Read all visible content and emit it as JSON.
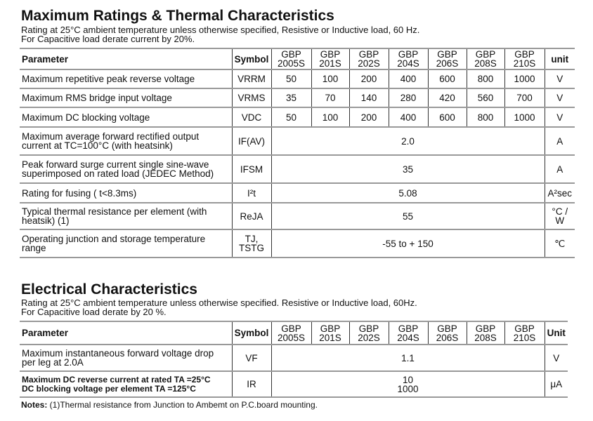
{
  "t1": {
    "title": "Maximum Ratings & Thermal Characteristics",
    "sub1": "Rating at 25°C ambient temperature unless otherwise specified, Resistive or Inductive load, 60 Hz.",
    "sub2": "For Capacitive load derate current by 20%.",
    "headers": {
      "param": "Parameter",
      "symbol": "Symbol",
      "unit": "unit",
      "models": [
        "GBP 2005S",
        "GBP 201S",
        "GBP 202S",
        "GBP 204S",
        "GBP 206S",
        "GBP 208S",
        "GBP 210S"
      ]
    },
    "rows": [
      {
        "param": "Maximum repetitive peak reverse voltage",
        "symbol": "VRRM",
        "values": [
          "50",
          "100",
          "200",
          "400",
          "600",
          "800",
          "1000"
        ],
        "unit": "V"
      },
      {
        "param": "Maximum RMS bridge input voltage",
        "symbol": "VRMS",
        "values": [
          "35",
          "70",
          "140",
          "280",
          "420",
          "560",
          "700"
        ],
        "unit": "V"
      },
      {
        "param": "Maximum DC blocking voltage",
        "symbol": "VDC",
        "values": [
          "50",
          "100",
          "200",
          "400",
          "600",
          "800",
          "1000"
        ],
        "unit": "V"
      },
      {
        "param": "Maximum average forward rectified output current at TC=100°C  (with heatsink)",
        "symbol": "IF(AV)",
        "value": "2.0",
        "unit": "A"
      },
      {
        "param": "Peak forward surge current single sine-wave superimposed on rated load (JEDEC Method)",
        "symbol": "IFSM",
        "value": "35",
        "unit": "A"
      },
      {
        "param": "Rating for fusing ( t<8.3ms)",
        "symbol": "I²t",
        "value": "5.08",
        "unit": "A²sec"
      },
      {
        "param": "Typical  thermal resistance per element (with heatsik)  (1)",
        "symbol": "ReJA",
        "value": "55",
        "unit": "°C / W"
      },
      {
        "param": "Operating junction and storage temperature range",
        "symbol": "TJ, TSTG",
        "value": "-55 to + 150",
        "unit": "℃"
      }
    ]
  },
  "t2": {
    "title": "Electrical Characteristics",
    "sub1": "Rating at 25°C ambient temperature unless otherwise specified. Resistive or Inductive load, 60Hz.",
    "sub2": "For Capacitive load derate by 20 %.",
    "headers": {
      "param": "Parameter",
      "symbol": "Symbol",
      "unit": "Unit",
      "models": [
        "GBP 2005S",
        "GBP 201S",
        "GBP 202S",
        "GBP 204S",
        "GBP 206S",
        "GBP 208S",
        "GBP 210S"
      ]
    },
    "rows": [
      {
        "param": "Maximum instantaneous forward voltage drop per leg at 2.0A",
        "symbol": "VF",
        "value": "1.1",
        "unit": "V"
      },
      {
        "param": "Maximum DC reverse current at rated TA =25°C",
        "param2": "DC blocking voltage per element       TA =125°C",
        "symbol": "IR",
        "value": "10",
        "value2": "1000",
        "unit": "μA"
      }
    ]
  },
  "notes": {
    "label": "Notes:",
    "text": " (1)Thermal resistance from Junction to Ambemt on P.C.board mounting."
  }
}
